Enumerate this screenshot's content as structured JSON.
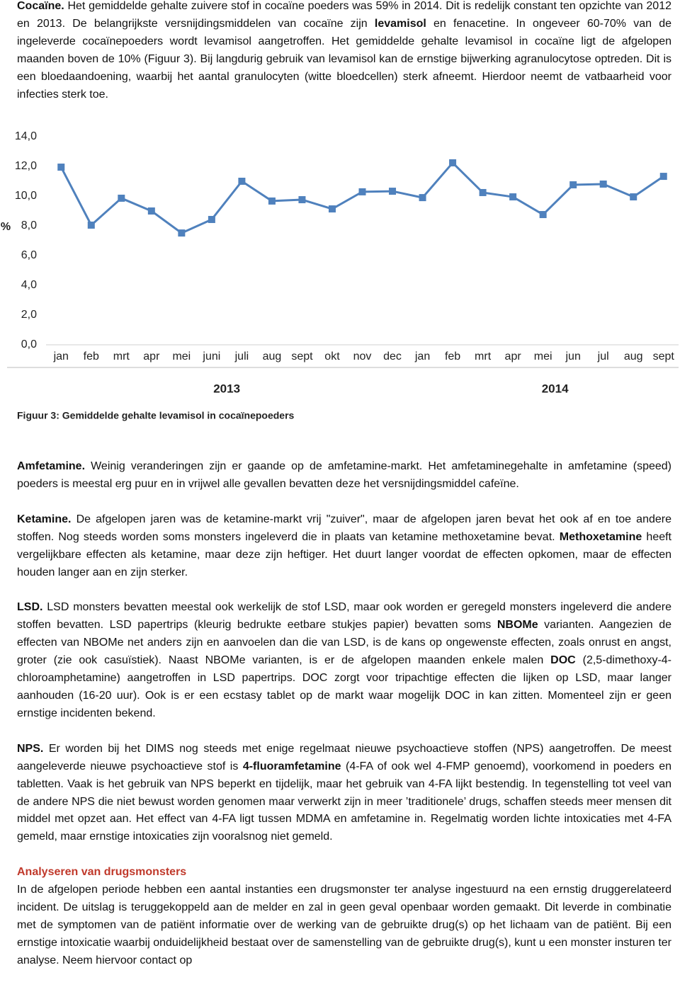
{
  "intro": {
    "runs": [
      {
        "text": "Cocaïne.",
        "bold": true
      },
      {
        "text": " Het gemiddelde gehalte zuivere stof in cocaïne poeders was 59% in 2014. Dit is redelijk constant ten opzichte van 2012 en 2013. De belangrijkste versnijdingsmiddelen van cocaïne zijn "
      },
      {
        "text": "levamisol",
        "bold": true
      },
      {
        "text": " en fenacetine. In ongeveer 60-70% van de ingeleverde cocaïnepoeders wordt levamisol aangetroffen. Het gemiddelde gehalte levamisol in cocaïne ligt de afgelopen maanden boven de 10% (Figuur 3). Bij langdurig gebruik van levamisol kan de ernstige bijwerking agranulocytose optreden. Dit is een bloedaandoening, waarbij het aantal granulocyten (witte bloedcellen) sterk afneemt. Hierdoor neemt de vatbaarheid voor infecties sterk toe."
      }
    ]
  },
  "chart_data": {
    "type": "line",
    "y_label": "%",
    "categories": [
      "jan",
      "feb",
      "mrt",
      "apr",
      "mei",
      "juni",
      "juli",
      "aug",
      "sept",
      "okt",
      "nov",
      "dec",
      "jan",
      "feb",
      "mrt",
      "apr",
      "mei",
      "jun",
      "jul",
      "aug",
      "sept"
    ],
    "values": [
      11.95,
      8.05,
      9.86,
      9.0,
      7.52,
      8.43,
      11.0,
      9.67,
      9.76,
      9.14,
      10.29,
      10.33,
      9.9,
      12.24,
      10.24,
      9.95,
      8.76,
      10.76,
      10.81,
      9.95,
      11.33
    ],
    "color": "#4f81bd",
    "ylim": [
      0,
      14
    ],
    "yticks": [
      {
        "value": 0,
        "label": "0,0"
      },
      {
        "value": 2,
        "label": "2,0"
      },
      {
        "value": 4,
        "label": "4,0"
      },
      {
        "value": 6,
        "label": "6,0"
      },
      {
        "value": 8,
        "label": "8,0"
      },
      {
        "value": 10,
        "label": "10,0"
      },
      {
        "value": 12,
        "label": "12,0"
      },
      {
        "value": 14,
        "label": "14,0"
      }
    ],
    "year_labels": [
      "2013",
      "2014"
    ],
    "caption": "Figuur 3: Gemiddelde gehalte levamisol in cocaïnepoeders"
  },
  "sections": [
    {
      "runs": [
        {
          "text": "Amfetamine.",
          "bold": true
        },
        {
          "text": " Weinig veranderingen zijn er gaande op de amfetamine-markt. Het amfetaminegehalte in amfetamine (speed) poeders is meestal erg puur en in vrijwel alle gevallen bevatten deze het versnijdingsmiddel cafeïne."
        }
      ]
    },
    {
      "runs": [
        {
          "text": "Ketamine.",
          "bold": true
        },
        {
          "text": " De afgelopen jaren was de ketamine-markt vrij \"zuiver\", maar de afgelopen jaren bevat het ook af en toe andere stoffen. Nog steeds worden soms monsters ingeleverd die in plaats van ketamine methoxetamine bevat. "
        },
        {
          "text": "Methoxetamine",
          "bold": true
        },
        {
          "text": " heeft vergelijkbare effecten als ketamine, maar deze zijn heftiger. Het duurt langer voordat de effecten opkomen, maar de effecten houden langer aan en zijn sterker."
        }
      ]
    },
    {
      "runs": [
        {
          "text": "LSD.",
          "bold": true
        },
        {
          "text": " LSD monsters bevatten meestal ook werkelijk de stof LSD, maar ook worden er geregeld monsters ingeleverd die andere stoffen bevatten. LSD papertrips (kleurig bedrukte eetbare stukjes papier) bevatten soms "
        },
        {
          "text": "NBOMe",
          "bold": true
        },
        {
          "text": " varianten. Aangezien de effecten van NBOMe net anders zijn en aanvoelen dan die van LSD, is de kans op ongewenste effecten, zoals onrust en angst, groter (zie ook casuïstiek). Naast NBOMe varianten, is er de afgelopen maanden enkele malen "
        },
        {
          "text": "DOC",
          "bold": true
        },
        {
          "text": " (2,5-dimethoxy-4-chloroamphetamine) aangetroffen in LSD papertrips. DOC zorgt voor tripachtige effecten die lijken op LSD, maar langer aanhouden (16-20 uur). Ook is er een ecstasy tablet op de markt waar mogelijk DOC in kan zitten. Momenteel zijn er geen ernstige incidenten bekend."
        }
      ]
    },
    {
      "runs": [
        {
          "text": "NPS.",
          "bold": true
        },
        {
          "text": " Er worden bij het DIMS nog steeds met enige regelmaat nieuwe psychoactieve stoffen (NPS) aangetroffen. De meest aangeleverde nieuwe psychoactieve stof is "
        },
        {
          "text": "4-fluoramfetamine",
          "bold": true
        },
        {
          "text": " (4-FA of ook wel 4-FMP genoemd), voorkomend in poeders en tabletten. Vaak is het gebruik van NPS beperkt en tijdelijk, maar het gebruik van 4-FA lijkt bestendig. In tegenstelling tot veel van de andere NPS die niet bewust worden genomen maar verwerkt zijn in meer ’traditionele’ drugs,  schaffen steeds meer mensen dit middel met opzet aan. Het effect van 4-FA ligt tussen MDMA en amfetamine in. Regelmatig worden lichte intoxicaties met 4-FA gemeld, maar ernstige intoxicaties zijn vooralsnog niet gemeld."
        }
      ]
    }
  ],
  "heading": {
    "text": "Analyseren van drugsmonsters",
    "color": "#c0392b"
  },
  "closing": {
    "runs": [
      {
        "text": "In de afgelopen periode hebben een aantal instanties een drugsmonster ter analyse ingestuurd na een ernstig druggerelateerd incident. De uitslag is teruggekoppeld aan de melder en zal in geen geval openbaar worden gemaakt. Dit leverde in combinatie met de symptomen van de patiënt informatie over de werking van de gebruikte drug(s) op het lichaam van de patiënt. Bij een ernstige intoxicatie waarbij onduidelijkheid bestaat over de samenstelling van de gebruikte drug(s), kunt u een monster insturen ter analyse. Neem hiervoor contact op"
      }
    ]
  }
}
